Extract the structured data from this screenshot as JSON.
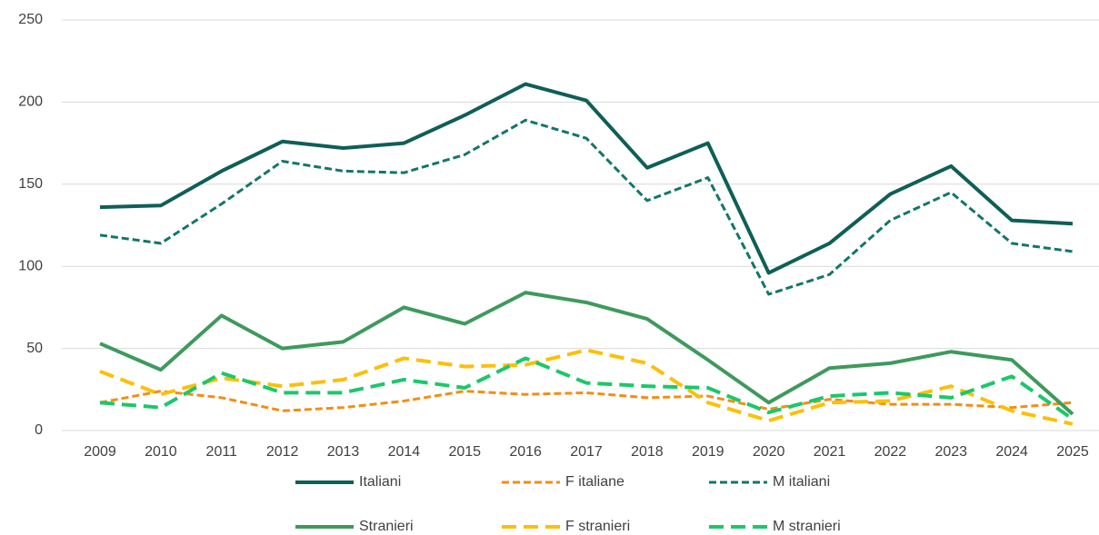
{
  "chart_data": {
    "type": "line",
    "categories": [
      "2009",
      "2010",
      "2011",
      "2012",
      "2013",
      "2014",
      "2015",
      "2016",
      "2017",
      "2018",
      "2019",
      "2020",
      "2021",
      "2022",
      "2023",
      "2024",
      "2025"
    ],
    "series": [
      {
        "name": "Italiani",
        "color": "#0e5f57",
        "dash": "solid",
        "values": [
          136,
          137,
          158,
          176,
          172,
          175,
          192,
          211,
          201,
          160,
          175,
          96,
          114,
          144,
          161,
          128,
          126
        ]
      },
      {
        "name": "F italiane",
        "color": "#f28e16",
        "dash": "dash",
        "values": [
          17,
          24,
          20,
          12,
          14,
          18,
          24,
          22,
          23,
          20,
          21,
          13,
          19,
          16,
          16,
          14,
          17
        ]
      },
      {
        "name": "M italiani",
        "color": "#13766a",
        "dash": "dash",
        "values": [
          119,
          114,
          138,
          164,
          158,
          157,
          168,
          189,
          178,
          140,
          154,
          83,
          95,
          128,
          145,
          114,
          109
        ]
      },
      {
        "name": "Stranieri",
        "color": "#3e9a5c",
        "dash": "solid",
        "values": [
          53,
          37,
          70,
          50,
          54,
          75,
          65,
          84,
          78,
          68,
          43,
          17,
          38,
          41,
          48,
          43,
          10
        ]
      },
      {
        "name": "F stranieri",
        "color": "#fcc00a",
        "dash": "long-dash",
        "values": [
          36,
          22,
          32,
          27,
          31,
          44,
          39,
          40,
          49,
          41,
          17,
          6,
          17,
          18,
          27,
          12,
          4
        ]
      },
      {
        "name": "M stranieri",
        "color": "#1bc86a",
        "dash": "long-dash",
        "values": [
          17,
          14,
          35,
          23,
          23,
          31,
          26,
          44,
          29,
          27,
          26,
          11,
          21,
          23,
          20,
          33,
          7
        ]
      }
    ],
    "ylim": [
      0,
      250
    ],
    "yticks": [
      0,
      50,
      100,
      150,
      200,
      250
    ],
    "grid": true,
    "legend": "bottom"
  }
}
